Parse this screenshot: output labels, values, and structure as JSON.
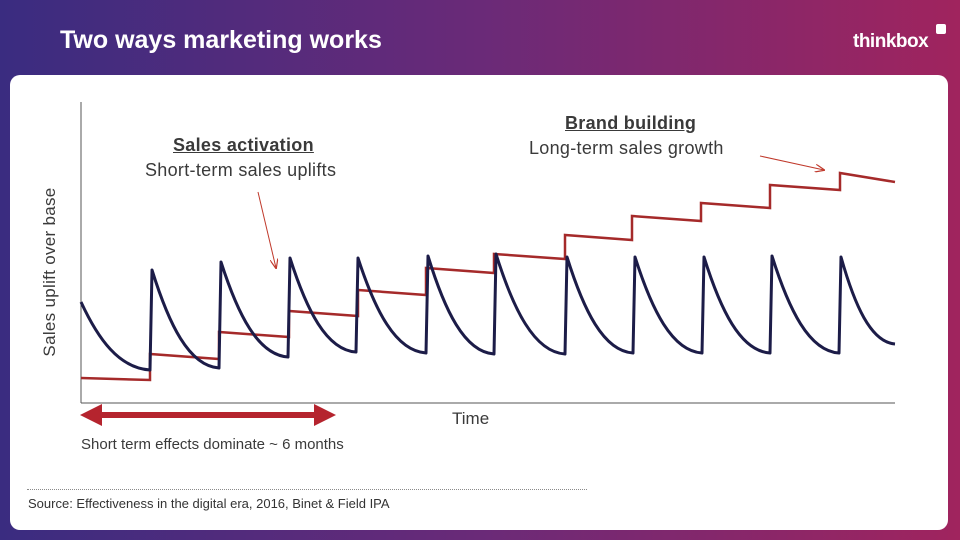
{
  "slide": {
    "title": "Two ways marketing works",
    "brand": "thinkbox"
  },
  "diagram": {
    "sales_activation": {
      "heading": "Sales activation",
      "subtitle": "Short-term sales uplifts"
    },
    "brand_building": {
      "heading": "Brand building",
      "subtitle": "Long-term sales growth"
    },
    "y_axis_label": "Sales uplift over base",
    "x_axis_label": "Time",
    "duration_note": "Short term effects dominate ~ 6 months"
  },
  "source": "Source: Effectiveness in the digital era, 2016, Binet & Field IPA",
  "colors": {
    "brand_line": "#a52a2a",
    "activation_line": "#1c1c48",
    "arrow": "#b5242e",
    "axis": "#555555"
  }
}
